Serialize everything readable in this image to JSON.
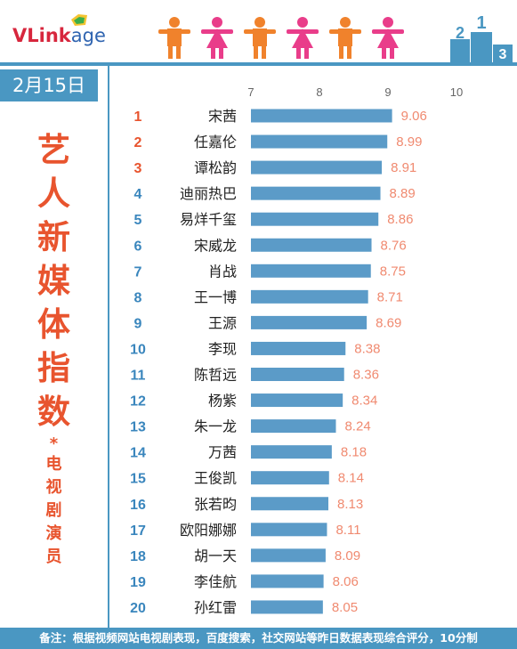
{
  "header": {
    "logo_text_1": "VLink",
    "logo_text_2": "age",
    "podium_numbers": [
      "2",
      "1",
      "3"
    ],
    "people_colors": [
      "#f0822c",
      "#e93d8a",
      "#f0822c",
      "#e93d8a",
      "#f0822c",
      "#e93d8a"
    ]
  },
  "sidebar": {
    "date": "2月15日",
    "title_chars": [
      "艺",
      "人",
      "新",
      "媒",
      "体",
      "指",
      "数"
    ],
    "star": "*",
    "subtitle_chars": [
      "电",
      "视",
      "剧",
      "演",
      "员"
    ]
  },
  "footer": {
    "note": "备注：根据视频网站电视剧表现，百度搜索，社交网站等昨日数据表现综合评分，10分制"
  },
  "colors": {
    "accent": "#4a97c2",
    "bar": "#5b9bc8",
    "title": "#e8542e",
    "value_label": "#f08a70",
    "rank_top": "#e8542e",
    "rank_rest": "#3a86bd"
  },
  "chart_data": {
    "type": "bar",
    "orientation": "horizontal",
    "xlim": [
      7,
      10
    ],
    "xticks": [
      7,
      8,
      9,
      10
    ],
    "grid": false,
    "ranks": [
      "1",
      "2",
      "3",
      "4",
      "5",
      "6",
      "7",
      "8",
      "9",
      "10",
      "11",
      "12",
      "13",
      "14",
      "15",
      "16",
      "17",
      "18",
      "19",
      "20"
    ],
    "categories": [
      "宋茜",
      "任嘉伦",
      "谭松韵",
      "迪丽热巴",
      "易烊千玺",
      "宋威龙",
      "肖战",
      "王一博",
      "王源",
      "李现",
      "陈哲远",
      "杨紫",
      "朱一龙",
      "万茜",
      "王俊凯",
      "张若昀",
      "欧阳娜娜",
      "胡一天",
      "李佳航",
      "孙红雷"
    ],
    "values": [
      9.06,
      8.99,
      8.91,
      8.89,
      8.86,
      8.76,
      8.75,
      8.71,
      8.69,
      8.38,
      8.36,
      8.34,
      8.24,
      8.18,
      8.14,
      8.13,
      8.11,
      8.09,
      8.06,
      8.05
    ],
    "value_labels": [
      "9.06",
      "8.99",
      "8.91",
      "8.89",
      "8.86",
      "8.76",
      "8.75",
      "8.71",
      "8.69",
      "8.38",
      "8.36",
      "8.34",
      "8.24",
      "8.18",
      "8.14",
      "8.13",
      "8.11",
      "8.09",
      "8.06",
      "8.05"
    ]
  }
}
